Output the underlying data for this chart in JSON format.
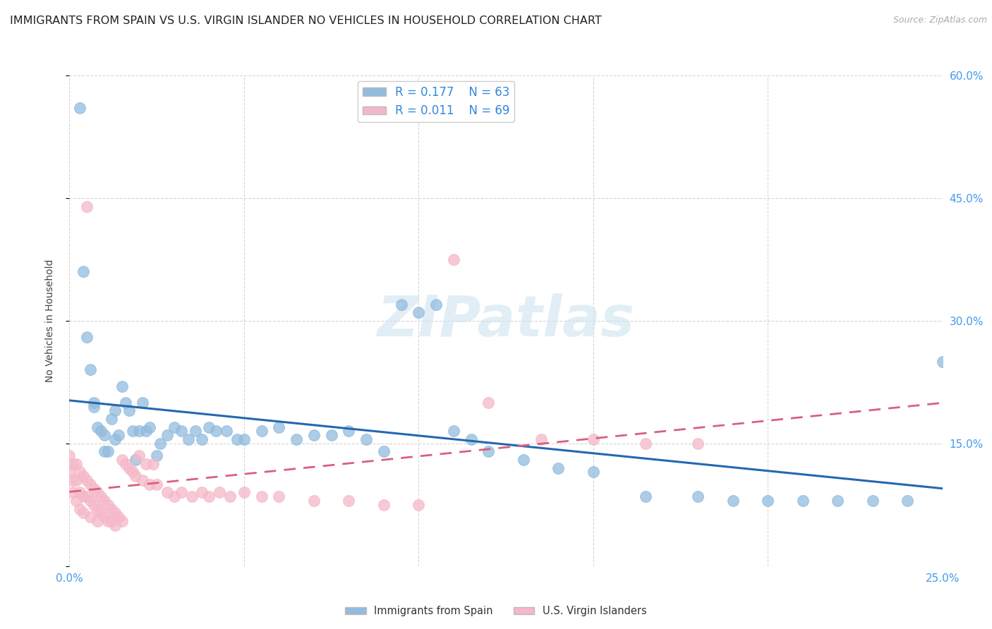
{
  "title": "IMMIGRANTS FROM SPAIN VS U.S. VIRGIN ISLANDER NO VEHICLES IN HOUSEHOLD CORRELATION CHART",
  "source": "Source: ZipAtlas.com",
  "ylabel": "No Vehicles in Household",
  "xlim": [
    0.0,
    0.25
  ],
  "ylim": [
    0.0,
    0.6
  ],
  "xticks": [
    0.0,
    0.05,
    0.1,
    0.15,
    0.2,
    0.25
  ],
  "xtick_labels": [
    "0.0%",
    "",
    "",
    "",
    "",
    "25.0%"
  ],
  "yticks_right": [
    0.0,
    0.15,
    0.3,
    0.45,
    0.6
  ],
  "ytick_labels_right": [
    "",
    "15.0%",
    "30.0%",
    "45.0%",
    "60.0%"
  ],
  "legend_r1": "R = 0.177",
  "legend_n1": "N = 63",
  "legend_r2": "R = 0.011",
  "legend_n2": "N = 69",
  "blue_color": "#92bbde",
  "pink_color": "#f5b8c8",
  "blue_line_color": "#2368b0",
  "pink_line_color": "#d9607e",
  "background_color": "#ffffff",
  "grid_color": "#cccccc",
  "watermark": "ZIPatlas",
  "title_fontsize": 11.5,
  "axis_label_fontsize": 10,
  "tick_fontsize": 11,
  "blue_scatter_x": [
    0.003,
    0.004,
    0.005,
    0.006,
    0.007,
    0.007,
    0.008,
    0.009,
    0.01,
    0.01,
    0.011,
    0.012,
    0.013,
    0.013,
    0.014,
    0.015,
    0.016,
    0.017,
    0.018,
    0.019,
    0.02,
    0.021,
    0.022,
    0.023,
    0.025,
    0.026,
    0.028,
    0.03,
    0.032,
    0.034,
    0.036,
    0.038,
    0.04,
    0.042,
    0.045,
    0.048,
    0.05,
    0.055,
    0.06,
    0.065,
    0.07,
    0.075,
    0.08,
    0.085,
    0.09,
    0.095,
    0.1,
    0.105,
    0.11,
    0.115,
    0.12,
    0.13,
    0.14,
    0.15,
    0.165,
    0.18,
    0.19,
    0.2,
    0.21,
    0.22,
    0.23,
    0.24,
    0.25
  ],
  "blue_scatter_y": [
    0.56,
    0.36,
    0.28,
    0.24,
    0.2,
    0.195,
    0.17,
    0.165,
    0.16,
    0.14,
    0.14,
    0.18,
    0.155,
    0.19,
    0.16,
    0.22,
    0.2,
    0.19,
    0.165,
    0.13,
    0.165,
    0.2,
    0.165,
    0.17,
    0.135,
    0.15,
    0.16,
    0.17,
    0.165,
    0.155,
    0.165,
    0.155,
    0.17,
    0.165,
    0.165,
    0.155,
    0.155,
    0.165,
    0.17,
    0.155,
    0.16,
    0.16,
    0.165,
    0.155,
    0.14,
    0.32,
    0.31,
    0.32,
    0.165,
    0.155,
    0.14,
    0.13,
    0.12,
    0.115,
    0.085,
    0.085,
    0.08,
    0.08,
    0.08,
    0.08,
    0.08,
    0.08,
    0.25
  ],
  "pink_scatter_x": [
    0.0,
    0.0,
    0.001,
    0.001,
    0.001,
    0.002,
    0.002,
    0.002,
    0.003,
    0.003,
    0.003,
    0.004,
    0.004,
    0.004,
    0.005,
    0.005,
    0.005,
    0.006,
    0.006,
    0.006,
    0.007,
    0.007,
    0.008,
    0.008,
    0.008,
    0.009,
    0.009,
    0.01,
    0.01,
    0.011,
    0.011,
    0.012,
    0.012,
    0.013,
    0.013,
    0.014,
    0.015,
    0.015,
    0.016,
    0.017,
    0.018,
    0.019,
    0.02,
    0.021,
    0.022,
    0.023,
    0.024,
    0.025,
    0.028,
    0.03,
    0.032,
    0.035,
    0.038,
    0.04,
    0.043,
    0.046,
    0.05,
    0.055,
    0.06,
    0.07,
    0.08,
    0.09,
    0.1,
    0.11,
    0.12,
    0.135,
    0.15,
    0.165,
    0.18
  ],
  "pink_scatter_y": [
    0.135,
    0.115,
    0.125,
    0.105,
    0.09,
    0.125,
    0.105,
    0.08,
    0.115,
    0.09,
    0.07,
    0.11,
    0.085,
    0.065,
    0.105,
    0.085,
    0.44,
    0.1,
    0.08,
    0.06,
    0.095,
    0.075,
    0.09,
    0.07,
    0.055,
    0.085,
    0.065,
    0.08,
    0.06,
    0.075,
    0.055,
    0.07,
    0.055,
    0.065,
    0.05,
    0.06,
    0.13,
    0.055,
    0.125,
    0.12,
    0.115,
    0.11,
    0.135,
    0.105,
    0.125,
    0.1,
    0.125,
    0.1,
    0.09,
    0.085,
    0.09,
    0.085,
    0.09,
    0.085,
    0.09,
    0.085,
    0.09,
    0.085,
    0.085,
    0.08,
    0.08,
    0.075,
    0.075,
    0.375,
    0.2,
    0.155,
    0.155,
    0.15,
    0.15
  ]
}
